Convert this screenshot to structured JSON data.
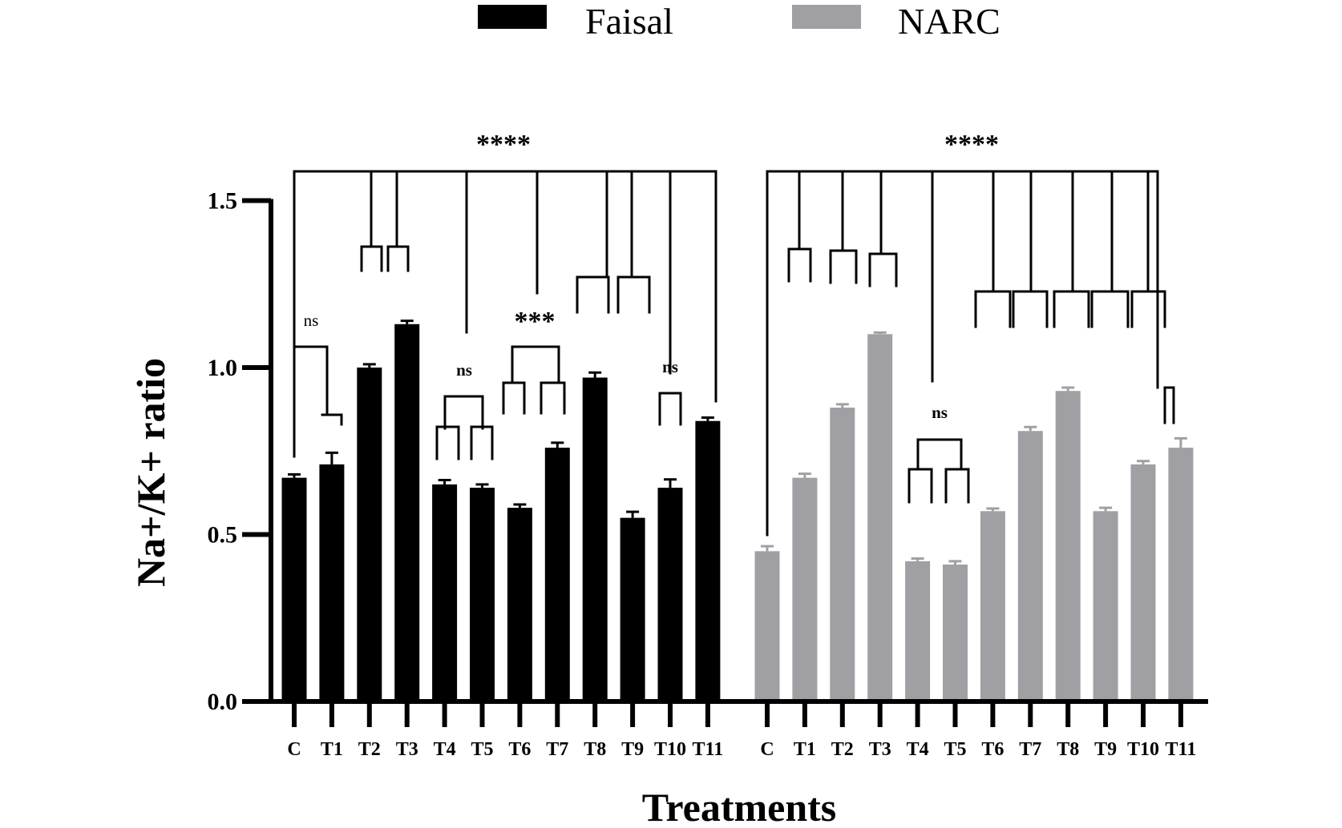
{
  "chart_data": {
    "type": "bar",
    "xlabel": "Treatments",
    "ylabel": "Na+/K+ ratio",
    "ylim": [
      0,
      1.5
    ],
    "yticks": [
      "0.0",
      "0.5",
      "1.0",
      "1.5"
    ],
    "ytick_values": [
      0,
      0.5,
      1.0,
      1.5
    ],
    "legend_position": "top-center",
    "categories": [
      "C",
      "T1",
      "T2",
      "T3",
      "T4",
      "T5",
      "T6",
      "T7",
      "T8",
      "T9",
      "T10",
      "T11"
    ],
    "series": [
      {
        "name": "Faisal",
        "color": "#000000",
        "values": [
          0.67,
          0.71,
          1.0,
          1.13,
          0.65,
          0.64,
          0.58,
          0.76,
          0.97,
          0.55,
          0.64,
          0.84
        ],
        "errors": [
          0.01,
          0.035,
          0.01,
          0.01,
          0.013,
          0.01,
          0.01,
          0.015,
          0.015,
          0.018,
          0.025,
          0.01
        ]
      },
      {
        "name": "NARC",
        "color": "#a0a0a4",
        "values": [
          0.45,
          0.67,
          0.88,
          1.1,
          0.42,
          0.41,
          0.57,
          0.81,
          0.93,
          0.57,
          0.71,
          0.76
        ],
        "errors": [
          0.015,
          0.012,
          0.01,
          0.005,
          0.008,
          0.01,
          0.008,
          0.012,
          0.01,
          0.01,
          0.01,
          0.028
        ]
      }
    ],
    "annotations": {
      "overall": "****",
      "faisal_c_t1": "ns",
      "faisal_t4_t5": "ns",
      "faisal_t6_t7": "***",
      "faisal_t10_t11": "ns",
      "narc_t4_t5": "ns"
    }
  }
}
